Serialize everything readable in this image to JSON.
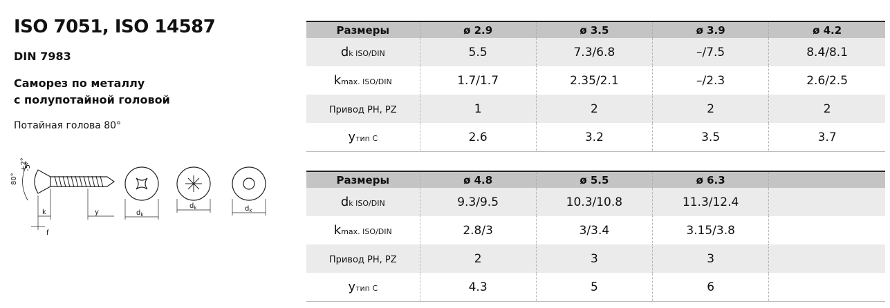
{
  "header": {
    "title": "ISO 7051, ISO 14587",
    "standard": "DIN 7983",
    "description": [
      "Саморез по металлу",
      "с полупотайной головой"
    ],
    "note": "Потайная голова 80°"
  },
  "diagram": {
    "angle": "80°",
    "angle_tol_plus": "+2°",
    "angle_tol_minus": "-5°",
    "k": "k",
    "f": "f",
    "y": "y",
    "dk": [
      {
        "main": "d",
        "sub": "k"
      },
      {
        "main": "d",
        "sub": "k"
      },
      {
        "main": "d",
        "sub": "k"
      }
    ]
  },
  "tables": [
    {
      "header": [
        "Размеры",
        "ø 2.9",
        "ø 3.5",
        "ø 3.9",
        "ø 4.2"
      ],
      "rows": [
        {
          "label": {
            "main": "d",
            "sub": "k ISO/DIN"
          },
          "values": [
            "5.5",
            "7.3/6.8",
            "–/7.5",
            "8.4/8.1"
          ]
        },
        {
          "label": {
            "main": "k",
            "sub": "max. ISO/DIN"
          },
          "values": [
            "1.7/1.7",
            "2.35/2.1",
            "–/2.3",
            "2.6/2.5"
          ]
        },
        {
          "label": {
            "main": "Привод PH, PZ"
          },
          "values": [
            "1",
            "2",
            "2",
            "2"
          ]
        },
        {
          "label": {
            "main": "y",
            "sub": "тип C"
          },
          "values": [
            "2.6",
            "3.2",
            "3.5",
            "3.7"
          ]
        }
      ]
    },
    {
      "header": [
        "Размеры",
        "ø 4.8",
        "ø 5.5",
        "ø 6.3"
      ],
      "rows": [
        {
          "label": {
            "main": "d",
            "sub": "k ISO/DIN"
          },
          "values": [
            "9.3/9.5",
            "10.3/10.8",
            "11.3/12.4"
          ]
        },
        {
          "label": {
            "main": "k",
            "sub": "max. ISO/DIN"
          },
          "values": [
            "2.8/3",
            "3/3.4",
            "3.15/3.8"
          ]
        },
        {
          "label": {
            "main": "Привод PH, PZ"
          },
          "values": [
            "2",
            "3",
            "3"
          ]
        },
        {
          "label": {
            "main": "y",
            "sub": "тип C"
          },
          "values": [
            "4.3",
            "5",
            "6"
          ]
        }
      ]
    }
  ]
}
